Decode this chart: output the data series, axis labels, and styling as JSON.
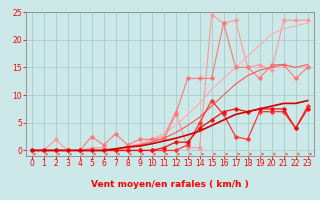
{
  "background_color": "#cce8e8",
  "grid_color": "#aacccc",
  "x_values": [
    0,
    1,
    2,
    3,
    4,
    5,
    6,
    7,
    8,
    9,
    10,
    11,
    12,
    13,
    14,
    15,
    16,
    17,
    18,
    19,
    20,
    21,
    22,
    23
  ],
  "xlabel": "Vent moyen/en rafales ( km/h )",
  "ylim": [
    -1,
    25
  ],
  "xlim": [
    -0.5,
    23.5
  ],
  "yticks": [
    0,
    5,
    10,
    15,
    20,
    25
  ],
  "xticks": [
    0,
    1,
    2,
    3,
    4,
    5,
    6,
    7,
    8,
    9,
    10,
    11,
    12,
    13,
    14,
    15,
    16,
    17,
    18,
    19,
    20,
    21,
    22,
    23
  ],
  "series": [
    {
      "color": "#ff9999",
      "lw": 0.8,
      "marker": "D",
      "ms": 1.8,
      "y": [
        0,
        0,
        2,
        0,
        0,
        0.5,
        0.5,
        0,
        0.5,
        1,
        2,
        2.5,
        7,
        0.5,
        0.5,
        24.5,
        23,
        23.5,
        15,
        15.5,
        14.5,
        23.5,
        23.5,
        23.5
      ]
    },
    {
      "color": "#ffaaaa",
      "lw": 0.8,
      "marker": null,
      "ms": 0,
      "y": [
        0,
        0,
        0,
        0,
        0,
        0,
        0,
        0.3,
        0.7,
        1.2,
        2,
        3,
        4.5,
        6.5,
        8.5,
        11,
        13,
        15,
        17,
        19,
        21,
        22,
        22.5,
        23
      ]
    },
    {
      "color": "#ff7777",
      "lw": 0.8,
      "marker": "D",
      "ms": 1.8,
      "y": [
        0,
        0,
        0,
        0,
        0,
        2.5,
        1,
        3,
        1,
        2,
        2,
        2,
        6.5,
        13,
        13,
        13,
        23,
        15,
        15,
        13,
        15.5,
        15.5,
        13,
        15
      ]
    },
    {
      "color": "#ff5555",
      "lw": 0.8,
      "marker": null,
      "ms": 0,
      "y": [
        0,
        0,
        0,
        0,
        0,
        0,
        0,
        0.3,
        0.7,
        1.0,
        1.5,
        2.2,
        3.2,
        4.5,
        6,
        8,
        10,
        12,
        13.5,
        14.5,
        15,
        15.5,
        15,
        15.5
      ]
    },
    {
      "color": "#ff3333",
      "lw": 0.9,
      "marker": "D",
      "ms": 1.8,
      "y": [
        0,
        0,
        0,
        0,
        0,
        0,
        0,
        0,
        0,
        0,
        0,
        0,
        0,
        1,
        5,
        9,
        6.5,
        2.5,
        2,
        7,
        7,
        7,
        4,
        8
      ]
    },
    {
      "color": "#ee1111",
      "lw": 0.9,
      "marker": "D",
      "ms": 1.8,
      "y": [
        0,
        0,
        0,
        0,
        0,
        0,
        0,
        0,
        0,
        0,
        0,
        0.5,
        1.5,
        1.5,
        4,
        5.5,
        7,
        7.5,
        7,
        7.5,
        7.5,
        7.5,
        4,
        7.5
      ]
    },
    {
      "color": "#cc0000",
      "lw": 1.2,
      "marker": null,
      "ms": 0,
      "y": [
        0,
        0,
        0,
        0,
        0,
        0,
        0,
        0.3,
        0.6,
        0.8,
        1.2,
        1.7,
        2.2,
        2.8,
        3.5,
        4.5,
        5.5,
        6.5,
        7,
        7.5,
        8,
        8.5,
        8.5,
        9
      ]
    }
  ],
  "tick_color": "#ff0000",
  "axis_color": "#888888",
  "xlabel_color": "#ff0000",
  "xlabel_fontsize": 6.5,
  "tick_fontsize": 5.5
}
